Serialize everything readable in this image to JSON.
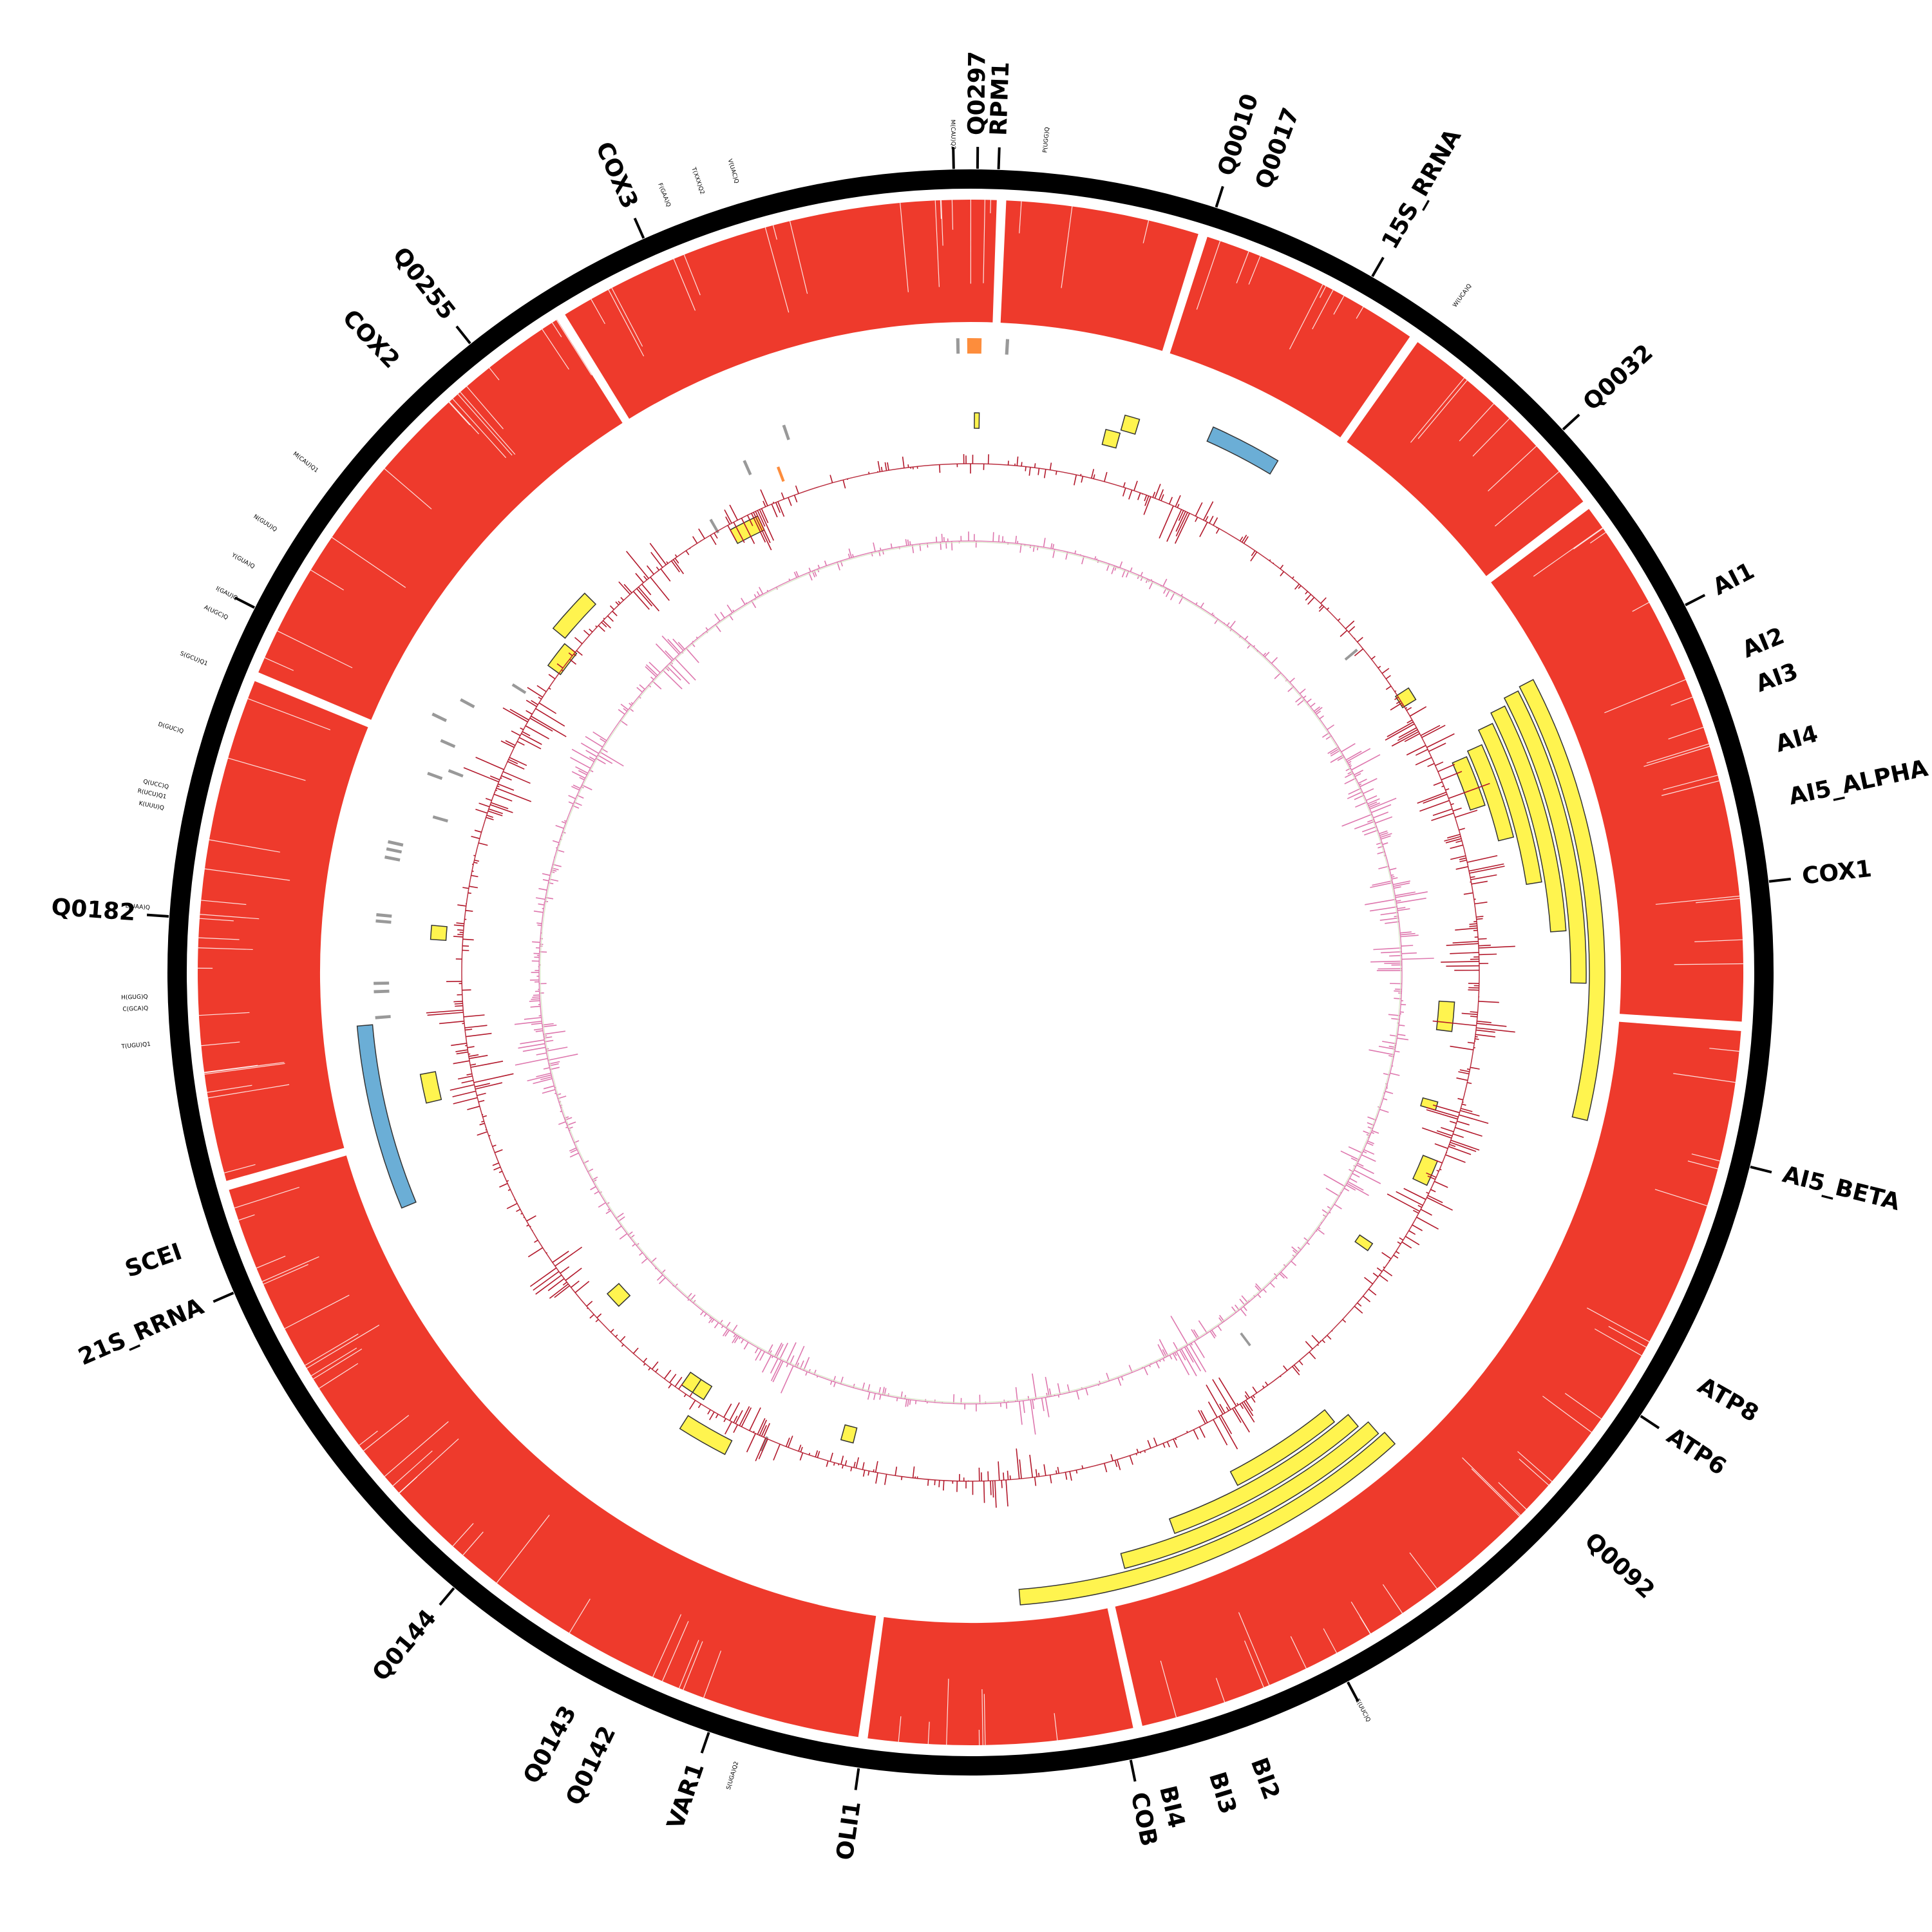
{
  "colors": {
    "backbone": "#000000",
    "coverage": "#ee3a2c",
    "gene_feature": "#fff44f",
    "rrna_feature": "#6baed6",
    "trna_feature": "#999999",
    "misc_feature": "#fd8d3c",
    "gc_skew": "#b2182b",
    "at_skew": "#de77ae",
    "baseline": "#d9e8c8",
    "feature_stroke": "#333333"
  },
  "gene_labels": [
    {
      "name": "gene-label-q0297",
      "text": "Q0297",
      "angle_deg": 0.5
    },
    {
      "name": "gene-label-rpm1",
      "text": "RPM1",
      "angle_deg": 2.0
    },
    {
      "name": "gene-label-q0010",
      "text": "Q0010",
      "angle_deg": 17.8
    },
    {
      "name": "gene-label-q0017",
      "text": "Q0017",
      "angle_deg": 20.5
    },
    {
      "name": "gene-label-15s-rrna",
      "text": "15S_RRNA",
      "angle_deg": 30.0
    },
    {
      "name": "gene-label-q0032",
      "text": "Q0032",
      "angle_deg": 47.5
    },
    {
      "name": "gene-label-ai1",
      "text": "AI1",
      "angle_deg": 62.8
    },
    {
      "name": "gene-label-ai2",
      "text": "AI2",
      "angle_deg": 67.5
    },
    {
      "name": "gene-label-ai3",
      "text": "AI3",
      "angle_deg": 70.0
    },
    {
      "name": "gene-label-ai4",
      "text": "AI4",
      "angle_deg": 74.3
    },
    {
      "name": "gene-label-ai5-alpha",
      "text": "AI5_ALPHA",
      "angle_deg": 78.0
    },
    {
      "name": "gene-label-cox1",
      "text": "COX1",
      "angle_deg": 83.5
    },
    {
      "name": "gene-label-ai5-beta",
      "text": "AI5_BETA",
      "angle_deg": 104.0
    },
    {
      "name": "gene-label-atp8",
      "text": "ATP8",
      "angle_deg": 119.5
    },
    {
      "name": "gene-label-atp6",
      "text": "ATP6",
      "angle_deg": 123.5
    },
    {
      "name": "gene-label-q0092",
      "text": "Q0092",
      "angle_deg": 132.5
    },
    {
      "name": "gene-label-bi2",
      "text": "BI2",
      "angle_deg": 160.0
    },
    {
      "name": "gene-label-bi3",
      "text": "BI3",
      "angle_deg": 163.0
    },
    {
      "name": "gene-label-bi4",
      "text": "BI4",
      "angle_deg": 166.5
    },
    {
      "name": "gene-label-cob",
      "text": "COB",
      "angle_deg": 168.5
    },
    {
      "name": "gene-label-oli1",
      "text": "OLI1",
      "angle_deg": 188.0
    },
    {
      "name": "gene-label-var1",
      "text": "VAR1",
      "angle_deg": 199.0
    },
    {
      "name": "gene-label-q0142",
      "text": "Q0142",
      "angle_deg": 205.5
    },
    {
      "name": "gene-label-q0143",
      "text": "Q0143",
      "angle_deg": 208.5
    },
    {
      "name": "gene-label-q0144",
      "text": "Q0144",
      "angle_deg": 220.0
    },
    {
      "name": "gene-label-21s-rrna",
      "text": "21S_RRNA",
      "angle_deg": 246.5
    },
    {
      "name": "gene-label-scei",
      "text": "SCEI",
      "angle_deg": 250.5
    },
    {
      "name": "gene-label-q0182",
      "text": "Q0182",
      "angle_deg": 274.0
    },
    {
      "name": "gene-label-cox2",
      "text": "COX2",
      "angle_deg": 316.5
    },
    {
      "name": "gene-label-q0255",
      "text": "Q0255",
      "angle_deg": 321.5
    },
    {
      "name": "gene-label-cox3",
      "text": "COX3",
      "angle_deg": 336.0
    }
  ],
  "trna_labels": [
    {
      "text": "M(CAU)Q2",
      "angle_deg": 358.8
    },
    {
      "text": "P(UGG)Q",
      "angle_deg": 5.2
    },
    {
      "text": "W(UCA)Q",
      "angle_deg": 36.0
    },
    {
      "text": "E(UUC)Q",
      "angle_deg": 152.0
    },
    {
      "text": "S(UGA)Q2",
      "angle_deg": 196.5
    },
    {
      "text": "T(UGU)Q1",
      "angle_deg": 265.0
    },
    {
      "text": "C(GCA)Q",
      "angle_deg": 267.5
    },
    {
      "text": "H(GUG)Q",
      "angle_deg": 268.3
    },
    {
      "text": "L(UAA)Q",
      "angle_deg": 274.5
    },
    {
      "text": "K(UUU)Q",
      "angle_deg": 281.5
    },
    {
      "text": "R(UCU)Q1",
      "angle_deg": 282.3
    },
    {
      "text": "Q(UCC)Q",
      "angle_deg": 283.0
    },
    {
      "text": "D(GUC)Q",
      "angle_deg": 287.0
    },
    {
      "text": "S(GCU)Q1",
      "angle_deg": 292.0
    },
    {
      "text": "A(UGC)Q",
      "angle_deg": 295.5
    },
    {
      "text": "I(GAU)Q",
      "angle_deg": 297.0
    },
    {
      "text": "Y(GUA)Q",
      "angle_deg": 299.5
    },
    {
      "text": "N(GUU)Q",
      "angle_deg": 302.5
    },
    {
      "text": "M(CAU)Q1",
      "angle_deg": 307.5
    },
    {
      "text": "F(GAA)Q",
      "angle_deg": 338.5
    },
    {
      "text": "T(XXX)Q2",
      "angle_deg": 341.0
    },
    {
      "text": "V(UAC)Q",
      "angle_deg": 343.5
    }
  ],
  "ticks_deg": [
    0.5,
    2.0,
    17.8,
    30.0,
    47.5,
    62.8,
    83.5,
    104.0,
    123.5,
    152.0,
    168.5,
    188.0,
    199.0,
    220.0,
    246.5,
    274.0,
    297.0,
    321.5,
    336.0,
    358.8
  ],
  "coverage_gaps_deg": [
    2.3,
    17.5,
    35.0,
    52.8,
    94.0,
    167.5,
    188.0,
    254.0,
    292.5,
    328.0
  ],
  "features": [
    {
      "type": "gene",
      "start": 62.5,
      "end": 103.5,
      "ring": 0
    },
    {
      "type": "gene",
      "start": 62.8,
      "end": 91.0,
      "ring": 1
    },
    {
      "type": "gene",
      "start": 63.5,
      "end": 86.0,
      "ring": 2
    },
    {
      "type": "gene",
      "start": 64.5,
      "end": 81.0,
      "ring": 3
    },
    {
      "type": "gene",
      "start": 66.0,
      "end": 76.0,
      "ring": 4
    },
    {
      "type": "gene",
      "start": 66.5,
      "end": 72.0,
      "ring": 5
    },
    {
      "type": "gene",
      "start": 57.0,
      "end": 58.5,
      "ring": 6
    },
    {
      "type": "rrna",
      "start": 24.0,
      "end": 31.0,
      "ring": 2
    },
    {
      "type": "gene",
      "start": 15.5,
      "end": 17.0,
      "ring": 3
    },
    {
      "type": "gene",
      "start": 14.0,
      "end": 15.5,
      "ring": 4
    },
    {
      "type": "gene",
      "start": 0.4,
      "end": 0.9,
      "ring": 4
    },
    {
      "type": "misc",
      "start": -0.3,
      "end": 1.0,
      "ring": 0
    },
    {
      "type": "trna",
      "start": -1.3,
      "end": -1.0,
      "ring": 0
    },
    {
      "type": "trna",
      "start": 3.2,
      "end": 3.5,
      "ring": 0
    },
    {
      "type": "trna",
      "start": 50.0,
      "end": 50.3,
      "ring": 7
    },
    {
      "type": "gene",
      "start": 93.5,
      "end": 97.0,
      "ring": 8
    },
    {
      "type": "gene",
      "start": 105.5,
      "end": 106.5,
      "ring": 8
    },
    {
      "type": "gene",
      "start": 112.0,
      "end": 115.0,
      "ring": 7
    },
    {
      "type": "gene",
      "start": 124.0,
      "end": 125.0,
      "ring": 8
    },
    {
      "type": "trna",
      "start": 143.0,
      "end": 143.3,
      "ring": 9
    },
    {
      "type": "gene",
      "start": 138.0,
      "end": 175.5,
      "ring": 0
    },
    {
      "type": "gene",
      "start": 138.5,
      "end": 165.5,
      "ring": 1
    },
    {
      "type": "gene",
      "start": 139.5,
      "end": 160.0,
      "ring": 2
    },
    {
      "type": "gene",
      "start": 141.0,
      "end": 152.5,
      "ring": 3
    },
    {
      "type": "gene",
      "start": 194.0,
      "end": 195.5,
      "ring": 8
    },
    {
      "type": "trna",
      "start": 203.5,
      "end": 203.8,
      "ring": 6
    },
    {
      "type": "gene",
      "start": 207.0,
      "end": 212.5,
      "ring": 5
    },
    {
      "type": "gene",
      "start": 212.0,
      "end": 213.5,
      "ring": 7
    },
    {
      "type": "gene",
      "start": 213.5,
      "end": 215.0,
      "ring": 7
    },
    {
      "type": "gene",
      "start": 226.5,
      "end": 228.5,
      "ring": 8
    },
    {
      "type": "rrna",
      "start": 247.5,
      "end": 265.0,
      "ring": 1
    },
    {
      "type": "gene",
      "start": 256.5,
      "end": 259.5,
      "ring": 4
    },
    {
      "type": "trna",
      "start": 265.5,
      "end": 265.8,
      "ring": 2
    },
    {
      "type": "trna",
      "start": 268.0,
      "end": 268.3,
      "ring": 2
    },
    {
      "type": "trna",
      "start": 268.8,
      "end": 269.1,
      "ring": 2
    },
    {
      "type": "gene",
      "start": 273.5,
      "end": 275.0,
      "ring": 5
    },
    {
      "type": "trna",
      "start": 274.8,
      "end": 275.1,
      "ring": 2
    },
    {
      "type": "trna",
      "start": 275.4,
      "end": 275.7,
      "ring": 2
    },
    {
      "type": "trna",
      "start": 281.0,
      "end": 281.3,
      "ring": 2
    },
    {
      "type": "trna",
      "start": 281.8,
      "end": 282.1,
      "ring": 2
    },
    {
      "type": "trna",
      "start": 282.5,
      "end": 282.8,
      "ring": 2
    },
    {
      "type": "trna",
      "start": 286.0,
      "end": 286.3,
      "ring": 4
    },
    {
      "type": "trna",
      "start": 290.0,
      "end": 290.3,
      "ring": 3
    },
    {
      "type": "trna",
      "start": 291.0,
      "end": 291.3,
      "ring": 4
    },
    {
      "type": "trna",
      "start": 293.5,
      "end": 293.8,
      "ring": 3
    },
    {
      "type": "trna",
      "start": 295.5,
      "end": 295.8,
      "ring": 2
    },
    {
      "type": "trna",
      "start": 298.0,
      "end": 298.3,
      "ring": 3
    },
    {
      "type": "trna",
      "start": 302.0,
      "end": 302.3,
      "ring": 5
    },
    {
      "type": "gene",
      "start": 306.0,
      "end": 309.0,
      "ring": 6
    },
    {
      "type": "gene",
      "start": 309.5,
      "end": 314.5,
      "ring": 5
    },
    {
      "type": "gene",
      "start": 331.5,
      "end": 335.0,
      "ring": 7
    },
    {
      "type": "trna",
      "start": 330.0,
      "end": 330.3,
      "ring": 6
    },
    {
      "type": "trna",
      "start": 336.0,
      "end": 336.3,
      "ring": 4
    },
    {
      "type": "misc",
      "start": 339.0,
      "end": 339.3,
      "ring": 5
    },
    {
      "type": "trna",
      "start": 341.0,
      "end": 341.3,
      "ring": 3
    }
  ],
  "gc_hotspots_deg": [
    24,
    62,
    70,
    78,
    88,
    96,
    108,
    118,
    150,
    176,
    205,
    234,
    258,
    265,
    292,
    300,
    321,
    335
  ],
  "at_hotspots_deg": [
    62,
    68,
    80,
    88,
    100,
    118,
    150,
    172,
    205,
    258,
    262,
    300,
    316
  ]
}
